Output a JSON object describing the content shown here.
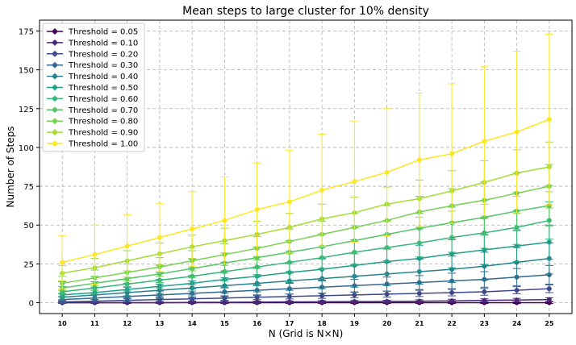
{
  "chart_data": {
    "type": "line",
    "title": "Mean steps to large cluster for 10% density",
    "xlabel": "N (Grid is N×N)",
    "ylabel": "Number of Steps",
    "x": [
      10,
      11,
      12,
      13,
      14,
      15,
      16,
      17,
      18,
      19,
      20,
      21,
      22,
      23,
      24,
      25
    ],
    "xlim": [
      9.3,
      25.7
    ],
    "ylim": [
      -7,
      182
    ],
    "y_ticks": [
      0,
      25,
      50,
      75,
      100,
      125,
      150,
      175
    ],
    "grid": true,
    "error_bars": true,
    "legend": "top-left",
    "series": [
      {
        "name": "Threshold = 0.05",
        "color": "#440154",
        "values": [
          0,
          0,
          0,
          0,
          0,
          0,
          0,
          0,
          0,
          0,
          0,
          0,
          0,
          0,
          0,
          0
        ],
        "errors": [
          0.5,
          0.5,
          0.5,
          0.5,
          0.5,
          0.5,
          0.5,
          0.5,
          0.5,
          0.5,
          0.5,
          0.5,
          0.5,
          0.5,
          0.5,
          0.5
        ]
      },
      {
        "name": "Threshold = 0.10",
        "color": "#482878",
        "values": [
          0,
          0,
          0,
          0,
          0.2,
          0.3,
          0.4,
          0.5,
          0.6,
          0.7,
          0.8,
          1.0,
          1.2,
          1.5,
          1.7,
          2.0
        ],
        "errors": [
          0.5,
          0.5,
          0.5,
          0.5,
          0.5,
          0.5,
          0.6,
          0.6,
          0.7,
          0.7,
          0.8,
          0.9,
          1.0,
          1.0,
          1.1,
          1.2
        ]
      },
      {
        "name": "Threshold = 0.20",
        "color": "#3e4989",
        "values": [
          0.5,
          1,
          1.5,
          2,
          2.5,
          3,
          3.5,
          4,
          4.5,
          5,
          5.5,
          6,
          6.5,
          7,
          8,
          9
        ],
        "errors": [
          1,
          1,
          1,
          1.2,
          1.3,
          1.4,
          1.5,
          1.6,
          1.7,
          1.8,
          1.9,
          2,
          2.1,
          2.2,
          2.3,
          2.5
        ]
      },
      {
        "name": "Threshold = 0.30",
        "color": "#31688e",
        "values": [
          2,
          3,
          4,
          5,
          6,
          7,
          8,
          9,
          10,
          11,
          12,
          13,
          14,
          15,
          16.5,
          18
        ],
        "errors": [
          2,
          2,
          2.5,
          2.5,
          3,
          3,
          3.5,
          3.5,
          4,
          4,
          4.5,
          4.5,
          5,
          5,
          5.5,
          6
        ]
      },
      {
        "name": "Threshold = 0.40",
        "color": "#26828e",
        "values": [
          3.5,
          5,
          6.5,
          8,
          9.5,
          11,
          12.5,
          14,
          15.5,
          17,
          18.5,
          20,
          21.5,
          23.5,
          26,
          28.5
        ],
        "errors": [
          2.5,
          3,
          3.5,
          4,
          4.5,
          5,
          5.5,
          6,
          6.5,
          7,
          7.5,
          8,
          8.5,
          9,
          9.5,
          10
        ]
      },
      {
        "name": "Threshold = 0.50",
        "color": "#1f9e89",
        "values": [
          5,
          6.5,
          8.5,
          10.5,
          12.5,
          15,
          17,
          19.5,
          21.5,
          24,
          26.5,
          28.5,
          31.5,
          34,
          36.5,
          39
        ],
        "errors": [
          3,
          3.5,
          4,
          4.5,
          5,
          5.5,
          6,
          6.5,
          7,
          7.5,
          8,
          8.5,
          9,
          9.5,
          10,
          11
        ]
      },
      {
        "name": "Threshold = 0.60",
        "color": "#35b779",
        "values": [
          7,
          9.5,
          12,
          14.5,
          17,
          20,
          23,
          26,
          29,
          32.5,
          35.5,
          38.5,
          42,
          45,
          48.5,
          53
        ],
        "errors": [
          3.5,
          4,
          4.5,
          5,
          5.5,
          6,
          6.5,
          7,
          7.5,
          8,
          8.5,
          9,
          9.5,
          10,
          11,
          12
        ]
      },
      {
        "name": "Threshold = 0.70",
        "color": "#54c568",
        "values": [
          9.5,
          12.5,
          15.5,
          18.5,
          22,
          25.5,
          29,
          32.5,
          36,
          40,
          44,
          48,
          51.5,
          55,
          59,
          62.5
        ],
        "errors": [
          4,
          4.5,
          5,
          5.5,
          6,
          6.5,
          7,
          7.5,
          8,
          8.5,
          9,
          9.5,
          10,
          11,
          12,
          13
        ]
      },
      {
        "name": "Threshold = 0.80",
        "color": "#7ad151",
        "values": [
          12.5,
          16,
          19.5,
          23,
          27,
          31,
          35,
          39.5,
          44,
          48.5,
          53,
          58.5,
          62.5,
          66,
          70.5,
          75
        ],
        "errors": [
          4.5,
          5,
          5.5,
          6,
          6.5,
          7,
          7.5,
          8,
          8.5,
          9,
          9.5,
          10,
          11,
          12,
          13,
          14
        ]
      },
      {
        "name": "Threshold = 0.90",
        "color": "#a5db36",
        "values": [
          19,
          22.5,
          27,
          31.5,
          36,
          40,
          44,
          48.5,
          54,
          58,
          63.5,
          67,
          72,
          77.5,
          83.5,
          87.5
        ],
        "errors": [
          5,
          6,
          6.5,
          7,
          7.5,
          8,
          8.5,
          9,
          9.5,
          10,
          11,
          12,
          13,
          14,
          15,
          16
        ]
      },
      {
        "name": "Threshold = 1.00",
        "color": "#fde725",
        "values": [
          26,
          31,
          36.5,
          42,
          47.5,
          53,
          60,
          65,
          72.5,
          78,
          84,
          92,
          96,
          104,
          110,
          118
        ],
        "errors": [
          17,
          19,
          20,
          22,
          24,
          28,
          30,
          33,
          36,
          39,
          41,
          43,
          45,
          48,
          52,
          55
        ]
      }
    ]
  }
}
